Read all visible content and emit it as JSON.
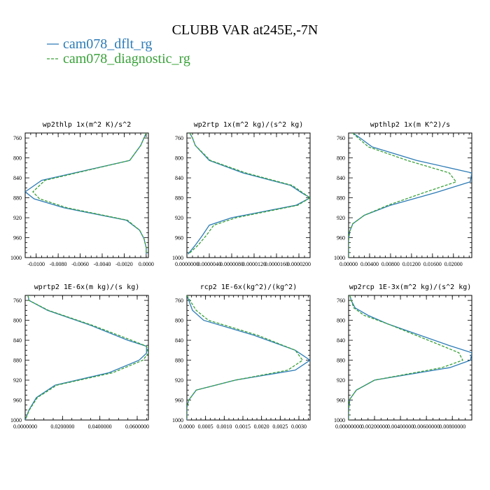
{
  "figure": {
    "title": "CLUBB VAR at245E,-7N",
    "legend": [
      {
        "label": "cam078_dflt_rg",
        "color": "#2c7bb6",
        "dash": "solid"
      },
      {
        "label": "cam078_diagnostic_rg",
        "color": "#3aa13a",
        "dash": "dashed"
      }
    ]
  },
  "chart_data": [
    {
      "type": "line",
      "title": "wp2thlp  1x(m^2 K)/s^2",
      "ylim": [
        1000,
        750
      ],
      "y_ticks": [
        "760",
        "800",
        "840",
        "880",
        "920",
        "960",
        "1000"
      ],
      "xlim": [
        -0.011,
        0.0002
      ],
      "x_ticks": [
        -0.01,
        -0.008,
        -0.006,
        -0.004,
        -0.002,
        0.0
      ],
      "x_tick_labels": [
        "-0.0100",
        "-0.0080",
        "-0.0060",
        "-0.0040",
        "-0.0020",
        "0.0000"
      ],
      "y_values": [
        750,
        760,
        775,
        805,
        845,
        868,
        882,
        900,
        925,
        945,
        962,
        980,
        993
      ],
      "series": [
        {
          "name": "cam078_dflt_rg",
          "color": "#2c7bb6",
          "dash": "solid",
          "x": [
            0.0,
            -0.0002,
            -0.0005,
            -0.0015,
            -0.0095,
            -0.011,
            -0.0102,
            -0.0075,
            -0.0018,
            -0.0006,
            -0.0002,
            0.0,
            0.0
          ]
        },
        {
          "name": "cam078_diagnostic_rg",
          "color": "#3aa13a",
          "dash": "dashed",
          "x": [
            0.0,
            -0.0002,
            -0.0005,
            -0.0015,
            -0.0092,
            -0.0103,
            -0.0097,
            -0.0072,
            -0.0017,
            -0.0006,
            -0.0002,
            0.0,
            0.0
          ]
        }
      ]
    },
    {
      "type": "line",
      "title": "wp2rtp  1x(m^2 kg)/(s^2 kg)",
      "ylim": [
        1000,
        750
      ],
      "y_ticks": [
        "760",
        "800",
        "840",
        "880",
        "920",
        "960",
        "1000"
      ],
      "xlim": [
        0.0,
        2.2e-05
      ],
      "x_ticks": [
        0.0,
        4e-06,
        8e-06,
        1.2e-05,
        1.6e-05,
        2e-05
      ],
      "x_tick_labels": [
        "0.0000000",
        "0.0000040",
        "0.0000080",
        "0.0000120",
        "0.0000160",
        "0.0000200"
      ],
      "y_values": [
        750,
        760,
        775,
        805,
        830,
        855,
        870,
        880,
        895,
        920,
        935,
        955,
        975,
        993
      ],
      "series": [
        {
          "name": "cam078_dflt_rg",
          "color": "#2c7bb6",
          "dash": "solid",
          "x": [
            5e-07,
            1e-06,
            1.5e-06,
            4e-06,
            1e-05,
            1.85e-05,
            2.05e-05,
            2.2e-05,
            1.95e-05,
            8e-06,
            4e-06,
            2.8e-06,
            1.5e-06,
            2e-07
          ]
        },
        {
          "name": "cam078_diagnostic_rg",
          "color": "#3aa13a",
          "dash": "dashed",
          "x": [
            5e-07,
            1e-06,
            1.5e-06,
            4.2e-06,
            1.05e-05,
            1.88e-05,
            2.07e-05,
            2.2e-05,
            1.98e-05,
            8.8e-06,
            4.8e-06,
            3.5e-06,
            2e-06,
            3e-07
          ]
        }
      ]
    },
    {
      "type": "line",
      "title": "wpthlp2  1x(m K^2)/s",
      "ylim": [
        1000,
        750
      ],
      "y_ticks": [
        "760",
        "800",
        "840",
        "880",
        "920",
        "960",
        "1000"
      ],
      "xlim": [
        0.0,
        0.0235
      ],
      "x_ticks": [
        0.0,
        0.004,
        0.008,
        0.012,
        0.016,
        0.02
      ],
      "x_tick_labels": [
        "0.00000",
        "0.00400",
        "0.00800",
        "0.01200",
        "0.01600",
        "0.02000"
      ],
      "y_values": [
        750,
        760,
        778,
        805,
        830,
        848,
        870,
        895,
        915,
        932,
        948,
        965,
        985,
        1000
      ],
      "series": [
        {
          "name": "cam078_dflt_rg",
          "color": "#2c7bb6",
          "dash": "solid",
          "x": [
            0.0008,
            0.0022,
            0.0045,
            0.013,
            0.0235,
            0.0232,
            0.0165,
            0.008,
            0.003,
            0.0008,
            0.0002,
            0.0,
            0.0,
            0.0
          ]
        },
        {
          "name": "cam078_diagnostic_rg",
          "color": "#3aa13a",
          "dash": "dashed",
          "x": [
            0.0008,
            0.0018,
            0.0038,
            0.0112,
            0.0192,
            0.0205,
            0.0143,
            0.0075,
            0.003,
            0.0008,
            0.0002,
            0.0,
            0.0,
            0.0
          ]
        }
      ]
    },
    {
      "type": "line",
      "title": "wprtp2  1E-6x(m kg)/(s kg)",
      "ylim": [
        1000,
        750
      ],
      "y_ticks": [
        "760",
        "800",
        "840",
        "880",
        "920",
        "960",
        "1000"
      ],
      "xlim": [
        0.0,
        0.066
      ],
      "x_ticks": [
        0.0,
        0.02,
        0.04,
        0.06
      ],
      "x_tick_labels": [
        "0.0000000",
        "0.0200000",
        "0.0400000",
        "0.0600000"
      ],
      "y_values": [
        750,
        760,
        780,
        810,
        840,
        852,
        866,
        880,
        905,
        930,
        955,
        980,
        1000
      ],
      "series": [
        {
          "name": "cam078_dflt_rg",
          "color": "#2c7bb6",
          "dash": "solid",
          "x": [
            0.0015,
            0.002,
            0.012,
            0.035,
            0.055,
            0.065,
            0.065,
            0.061,
            0.045,
            0.016,
            0.006,
            0.002,
            0.0
          ]
        },
        {
          "name": "cam078_diagnostic_rg",
          "color": "#3aa13a",
          "dash": "dashed",
          "x": [
            0.0015,
            0.002,
            0.0125,
            0.036,
            0.057,
            0.065,
            0.066,
            0.063,
            0.047,
            0.017,
            0.0065,
            0.0022,
            0.0
          ]
        }
      ]
    },
    {
      "type": "line",
      "title": "rcp2  1E-6x(kg^2)/(kg^2)",
      "ylim": [
        1000,
        750
      ],
      "y_ticks": [
        "760",
        "800",
        "840",
        "880",
        "920",
        "960",
        "1000"
      ],
      "xlim": [
        0.0,
        0.0033
      ],
      "x_ticks": [
        0.0,
        0.0005,
        0.001,
        0.0015,
        0.002,
        0.0025,
        0.003
      ],
      "x_tick_labels": [
        "0.0000",
        "0.0005",
        "0.0010",
        "0.0015",
        "0.0020",
        "0.0025",
        "0.0030"
      ],
      "y_values": [
        750,
        760,
        780,
        800,
        830,
        860,
        880,
        900,
        920,
        940,
        960,
        975,
        1000
      ],
      "series": [
        {
          "name": "cam078_dflt_rg",
          "color": "#2c7bb6",
          "dash": "solid",
          "x": [
            0.0,
            5e-05,
            0.00015,
            0.00045,
            0.0018,
            0.0029,
            0.0033,
            0.0029,
            0.0013,
            0.00025,
            5e-05,
            0.0,
            0.0
          ]
        },
        {
          "name": "cam078_diagnostic_rg",
          "color": "#3aa13a",
          "dash": "dashed",
          "x": [
            0.0,
            8e-05,
            0.00025,
            0.00058,
            0.0019,
            0.0029,
            0.0031,
            0.0027,
            0.0013,
            0.00025,
            5e-05,
            0.0,
            0.0
          ]
        }
      ]
    },
    {
      "type": "line",
      "title": "wp2rcp  1E-3x(m^2 kg)/(s^2 kg)",
      "ylim": [
        1000,
        750
      ],
      "y_ticks": [
        "760",
        "800",
        "840",
        "880",
        "920",
        "960",
        "1000"
      ],
      "xlim": [
        0.0,
        0.0095
      ],
      "x_ticks": [
        0.0,
        0.002,
        0.004,
        0.006,
        0.008
      ],
      "x_tick_labels": [
        "0.00000000",
        "0.00200000",
        "0.00400000",
        "0.00600000",
        "0.00800000"
      ],
      "y_values": [
        750,
        760,
        775,
        790,
        807,
        850,
        865,
        880,
        895,
        920,
        940,
        958,
        980,
        1000
      ],
      "series": [
        {
          "name": "cam078_dflt_rg",
          "color": "#2c7bb6",
          "dash": "solid",
          "x": [
            0.0001,
            0.0002,
            0.0005,
            0.0015,
            0.003,
            0.0077,
            0.0095,
            0.0094,
            0.0078,
            0.002,
            0.0006,
            0.0001,
            0.0,
            0.0
          ]
        },
        {
          "name": "cam078_diagnostic_rg",
          "color": "#3aa13a",
          "dash": "dashed",
          "x": [
            0.0001,
            0.0002,
            0.0004,
            0.0012,
            0.003,
            0.0071,
            0.0085,
            0.0088,
            0.0072,
            0.002,
            0.0006,
            0.0001,
            0.0,
            0.0
          ]
        }
      ]
    }
  ]
}
